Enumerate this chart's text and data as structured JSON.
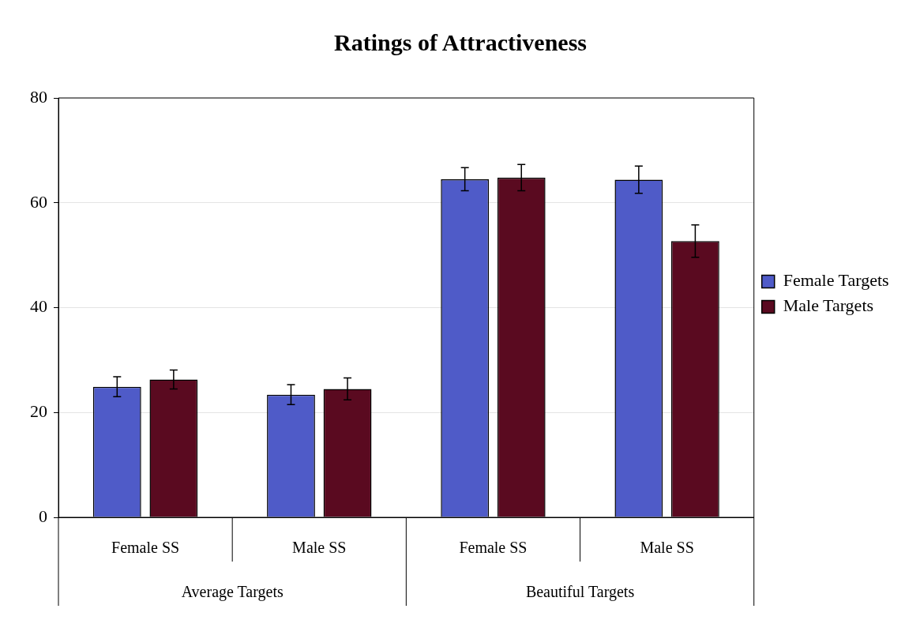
{
  "chart_data": {
    "type": "bar",
    "title": "Ratings of Attractiveness",
    "categories": [
      "Female SS",
      "Male SS",
      "Female SS",
      "Male SS"
    ],
    "series": [
      {
        "name": "Female Targets",
        "color": "#4f5bc8",
        "values": [
          24.9,
          23.4,
          64.5,
          64.4
        ],
        "errors": [
          1.9,
          1.9,
          2.2,
          2.6
        ]
      },
      {
        "name": "Male Targets",
        "color": "#5a0a20",
        "values": [
          26.3,
          24.5,
          64.8,
          52.7
        ],
        "errors": [
          1.8,
          2.1,
          2.5,
          3.1
        ]
      }
    ],
    "ylim": [
      0,
      80
    ],
    "yticks": [
      0,
      20,
      40,
      60,
      80
    ],
    "grid": "y",
    "legend": "right",
    "annotations": [
      "Average Targets",
      "Beautiful Targets"
    ]
  }
}
